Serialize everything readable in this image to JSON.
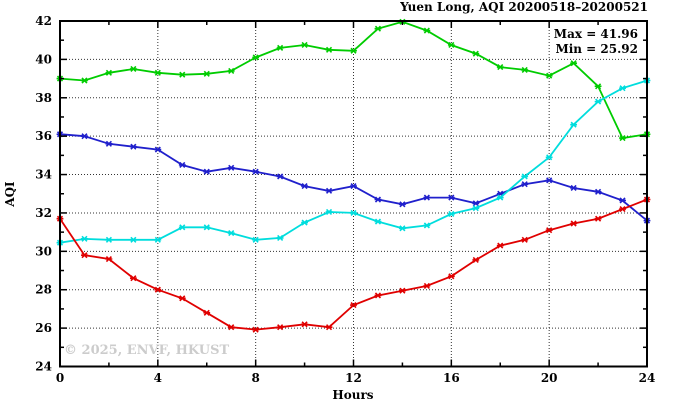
{
  "title": "Yuen Long, AQI 20200518–20200521",
  "watermark": "© 2025, ENVF, HKUST",
  "annotations": {
    "max_label": "Max = 41.96",
    "min_label": "Min = 25.92"
  },
  "chart_data": {
    "type": "line",
    "title": "Yuen Long, AQI 20200518–20200521",
    "xlabel": "Hours",
    "ylabel": "AQI",
    "xlim": [
      0,
      24
    ],
    "ylim": [
      24,
      42
    ],
    "x_major_ticks": [
      0,
      4,
      8,
      12,
      16,
      20,
      24
    ],
    "x_minor_step": 2,
    "y_major_ticks": [
      24,
      26,
      28,
      30,
      32,
      34,
      36,
      38,
      40,
      42
    ],
    "y_minor_step": 1,
    "grid": "dotted gridlines at interior major ticks",
    "legend": "none",
    "marker": "asterisk",
    "x": [
      0,
      1,
      2,
      3,
      4,
      5,
      6,
      7,
      8,
      9,
      10,
      11,
      12,
      13,
      14,
      15,
      16,
      17,
      18,
      19,
      20,
      21,
      22,
      23,
      24
    ],
    "series": [
      {
        "name": "green-series",
        "color": "#00cc00",
        "values": [
          39.0,
          38.9,
          39.3,
          39.5,
          39.3,
          39.2,
          39.25,
          39.4,
          40.1,
          40.6,
          40.75,
          40.5,
          40.45,
          41.6,
          41.96,
          41.5,
          40.75,
          40.3,
          39.6,
          39.45,
          39.15,
          39.8,
          38.6,
          35.9,
          36.1
        ]
      },
      {
        "name": "blue-series",
        "color": "#2020cc",
        "values": [
          36.1,
          36.0,
          35.6,
          35.45,
          35.3,
          34.5,
          34.15,
          34.35,
          34.15,
          33.9,
          33.4,
          33.15,
          33.4,
          32.7,
          32.45,
          32.8,
          32.8,
          32.5,
          33.0,
          33.5,
          33.7,
          33.3,
          33.1,
          32.65,
          31.6
        ]
      },
      {
        "name": "cyan-series",
        "color": "#00dddd",
        "values": [
          30.45,
          30.65,
          30.6,
          30.6,
          30.6,
          31.25,
          31.25,
          30.95,
          30.6,
          30.7,
          31.5,
          32.05,
          32.0,
          31.55,
          31.2,
          31.35,
          31.95,
          32.25,
          32.8,
          33.9,
          34.9,
          36.6,
          37.8,
          38.5,
          38.9
        ]
      },
      {
        "name": "red-series",
        "color": "#e00000",
        "values": [
          31.7,
          29.8,
          29.6,
          28.6,
          28.0,
          27.55,
          26.8,
          26.05,
          25.92,
          26.05,
          26.2,
          26.05,
          27.2,
          27.7,
          27.95,
          28.2,
          28.7,
          29.55,
          30.3,
          30.6,
          31.1,
          31.45,
          31.7,
          32.2,
          32.7
        ]
      }
    ]
  }
}
